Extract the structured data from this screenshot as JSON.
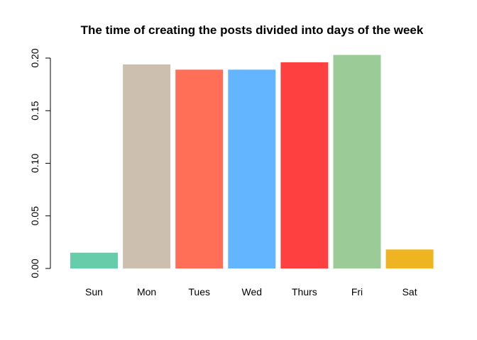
{
  "chart_data": {
    "type": "bar",
    "title": "The time of creating the posts divided into days of the week",
    "xlabel": "",
    "ylabel": "",
    "categories": [
      "Sun",
      "Mon",
      "Tues",
      "Wed",
      "Thurs",
      "Fri",
      "Sat"
    ],
    "values": [
      0.015,
      0.194,
      0.189,
      0.189,
      0.196,
      0.203,
      0.018
    ],
    "colors": [
      "#66CDAA",
      "#CDBFB0",
      "#FF6F57",
      "#63B5FF",
      "#FF4040",
      "#9BCB96",
      "#EEB422"
    ],
    "ylim": [
      0,
      0.2
    ],
    "yticks": [
      "0.00",
      "0.05",
      "0.10",
      "0.15",
      "0.20"
    ],
    "grid": false,
    "legend": "none"
  }
}
